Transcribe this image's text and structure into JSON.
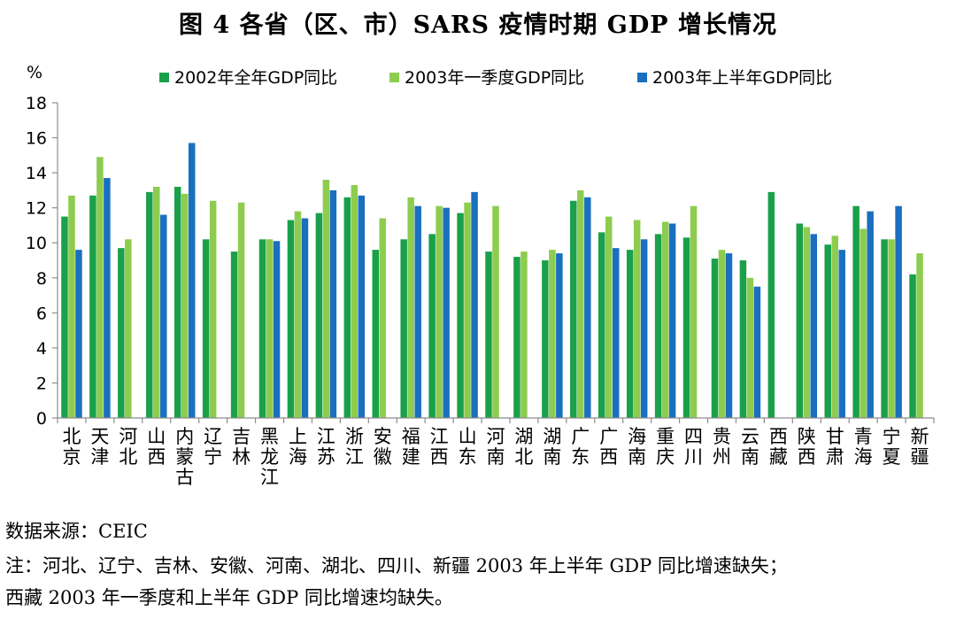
{
  "title": "图 4  各省（区、市）SARS 疫情时期 GDP 增长情况",
  "source": "数据来源：CEIC",
  "note_line1": "注：河北、辽宁、吉林、安徽、河南、湖北、四川、新疆 2003 年上半年 GDP 同比增速缺失；",
  "note_line2": "西藏 2003 年一季度和上半年 GDP 同比增速均缺失。",
  "chart_data": {
    "type": "bar",
    "title": "图 4  各省（区、市）SARS 疫情时期 GDP 增长情况",
    "ylabel": "%",
    "xlabel": "",
    "ylim": [
      0,
      18
    ],
    "yticks": [
      0,
      2,
      4,
      6,
      8,
      10,
      12,
      14,
      16,
      18
    ],
    "grid": false,
    "legend_position": "top",
    "categories": [
      "北京",
      "天津",
      "河北",
      "山西",
      "内蒙古",
      "辽宁",
      "吉林",
      "黑龙江",
      "上海",
      "江苏",
      "浙江",
      "安徽",
      "福建",
      "江西",
      "山东",
      "河南",
      "湖北",
      "湖南",
      "广东",
      "广西",
      "海南",
      "重庆",
      "四川",
      "贵州",
      "云南",
      "西藏",
      "陕西",
      "甘肃",
      "青海",
      "宁夏",
      "新疆"
    ],
    "series": [
      {
        "name": "2002年全年GDP同比",
        "color": "#1aa04a",
        "values": [
          11.5,
          12.7,
          9.7,
          12.9,
          13.2,
          10.2,
          9.5,
          10.2,
          11.3,
          11.7,
          12.6,
          9.6,
          10.2,
          10.5,
          11.7,
          9.5,
          9.2,
          9.0,
          12.4,
          10.6,
          9.6,
          10.5,
          10.3,
          9.1,
          9.0,
          12.9,
          11.1,
          9.9,
          12.1,
          10.2,
          8.2
        ]
      },
      {
        "name": "2003年一季度GDP同比",
        "color": "#8dcc4f",
        "values": [
          12.7,
          14.9,
          10.2,
          13.2,
          12.8,
          12.4,
          12.3,
          10.2,
          11.8,
          13.6,
          13.3,
          11.4,
          12.6,
          12.1,
          12.3,
          12.1,
          9.5,
          9.6,
          13.0,
          11.5,
          11.3,
          11.2,
          12.1,
          9.6,
          8.0,
          null,
          10.9,
          10.4,
          10.8,
          10.2,
          9.4
        ]
      },
      {
        "name": "2003年上半年GDP同比",
        "color": "#1a6fbf",
        "values": [
          9.6,
          13.7,
          null,
          11.6,
          15.7,
          null,
          null,
          10.1,
          11.4,
          13.0,
          12.7,
          null,
          12.1,
          12.0,
          12.9,
          null,
          null,
          9.4,
          12.6,
          9.7,
          10.2,
          11.1,
          null,
          9.4,
          7.5,
          null,
          10.5,
          9.6,
          11.8,
          12.1,
          null
        ]
      }
    ]
  }
}
